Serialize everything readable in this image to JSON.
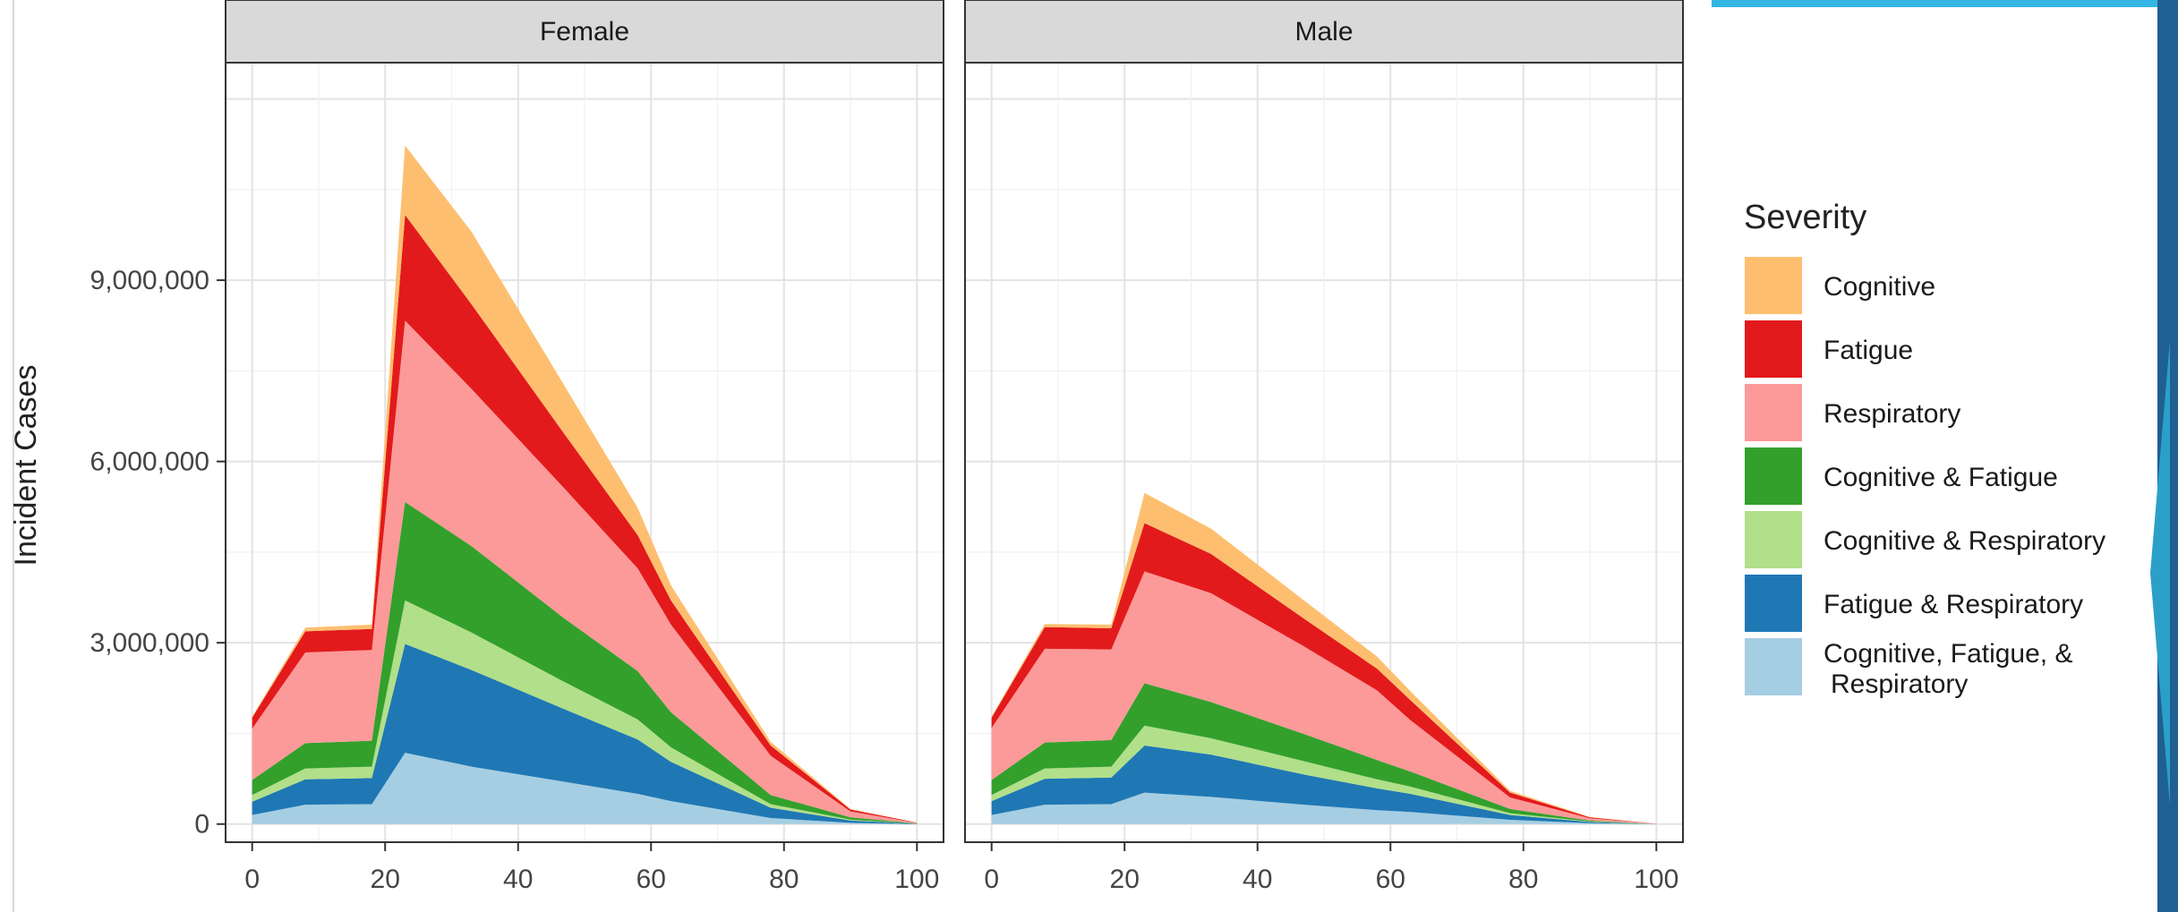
{
  "chart_data": {
    "type": "area",
    "stacked": true,
    "facets": [
      "Female",
      "Male"
    ],
    "ylabel": "Incident Cases",
    "y_ticks": [
      "0",
      "3,000,000",
      "6,000,000",
      "9,000,000"
    ],
    "y_tick_values": [
      0,
      3000000,
      6000000,
      9000000
    ],
    "x_ticks": [
      "0",
      "20",
      "40",
      "60",
      "80",
      "100"
    ],
    "x_tick_values": [
      0,
      20,
      40,
      60,
      80,
      100
    ],
    "xlim": [
      -4,
      104
    ],
    "ylim": [
      -300000,
      12600000
    ],
    "grid": true,
    "legend": {
      "title": "Severity",
      "placement": "right",
      "entries": [
        {
          "key": "cognitive",
          "label": "Cognitive",
          "color": "#fdbf6f"
        },
        {
          "key": "fatigue",
          "label": "Fatigue",
          "color": "#e31a1c"
        },
        {
          "key": "respiratory",
          "label": "Respiratory",
          "color": "#fb9a99"
        },
        {
          "key": "cog_fat",
          "label": "Cognitive & Fatigue",
          "color": "#33a02c"
        },
        {
          "key": "cog_resp",
          "label": "Cognitive & Respiratory",
          "color": "#b2df8a"
        },
        {
          "key": "fat_resp",
          "label": "Fatigue & Respiratory",
          "color": "#1f78b4"
        },
        {
          "key": "all_three",
          "label": "Cognitive, Fatigue, & Respiratory",
          "label_lines": [
            "Cognitive, Fatigue, &",
            "Respiratory"
          ],
          "color": "#a6cee3"
        }
      ]
    },
    "x": [
      0,
      8,
      18,
      23,
      33,
      47,
      58,
      63,
      78,
      90,
      100
    ],
    "panels": [
      {
        "facet": "Female",
        "series": [
          {
            "key": "all_three",
            "values": [
              150000,
              320000,
              330000,
              1180000,
              950000,
              700000,
              500000,
              380000,
              100000,
              20000,
              0
            ]
          },
          {
            "key": "fat_resp",
            "values": [
              220000,
              420000,
              430000,
              1800000,
              1600000,
              1200000,
              900000,
              650000,
              170000,
              40000,
              5000
            ]
          },
          {
            "key": "cog_resp",
            "values": [
              110000,
              180000,
              190000,
              720000,
              620000,
              450000,
              330000,
              240000,
              60000,
              15000,
              0
            ]
          },
          {
            "key": "cog_fat",
            "values": [
              250000,
              420000,
              430000,
              1630000,
              1430000,
              1050000,
              800000,
              580000,
              150000,
              35000,
              5000
            ]
          },
          {
            "key": "respiratory",
            "values": [
              850000,
              1500000,
              1500000,
              3000000,
              2600000,
              2150000,
              1700000,
              1450000,
              650000,
              100000,
              10000
            ]
          },
          {
            "key": "fatigue",
            "values": [
              180000,
              350000,
              350000,
              1750000,
              1400000,
              900000,
              550000,
              400000,
              170000,
              30000,
              5000
            ]
          },
          {
            "key": "cognitive",
            "values": [
              20000,
              60000,
              70000,
              1150000,
              1200000,
              800000,
              450000,
              250000,
              60000,
              10000,
              0
            ]
          }
        ]
      },
      {
        "facet": "Male",
        "series": [
          {
            "key": "all_three",
            "values": [
              150000,
              320000,
              330000,
              520000,
              450000,
              320000,
              230000,
              200000,
              70000,
              15000,
              0
            ]
          },
          {
            "key": "fat_resp",
            "values": [
              230000,
              430000,
              440000,
              780000,
              700000,
              500000,
              360000,
              300000,
              80000,
              20000,
              0
            ]
          },
          {
            "key": "cog_resp",
            "values": [
              100000,
              170000,
              180000,
              330000,
              270000,
              220000,
              150000,
              120000,
              30000,
              7000,
              0
            ]
          },
          {
            "key": "cog_fat",
            "values": [
              250000,
              430000,
              440000,
              700000,
              600000,
              450000,
              320000,
              250000,
              70000,
              15000,
              0
            ]
          },
          {
            "key": "respiratory",
            "values": [
              860000,
              1550000,
              1500000,
              1850000,
              1800000,
              1450000,
              1150000,
              850000,
              190000,
              40000,
              5000
            ]
          },
          {
            "key": "fatigue",
            "values": [
              170000,
              360000,
              350000,
              800000,
              650000,
              460000,
              360000,
              330000,
              80000,
              15000,
              0
            ]
          },
          {
            "key": "cognitive",
            "values": [
              20000,
              50000,
              60000,
              500000,
              420000,
              300000,
              200000,
              150000,
              30000,
              6000,
              0
            ]
          }
        ]
      }
    ]
  }
}
